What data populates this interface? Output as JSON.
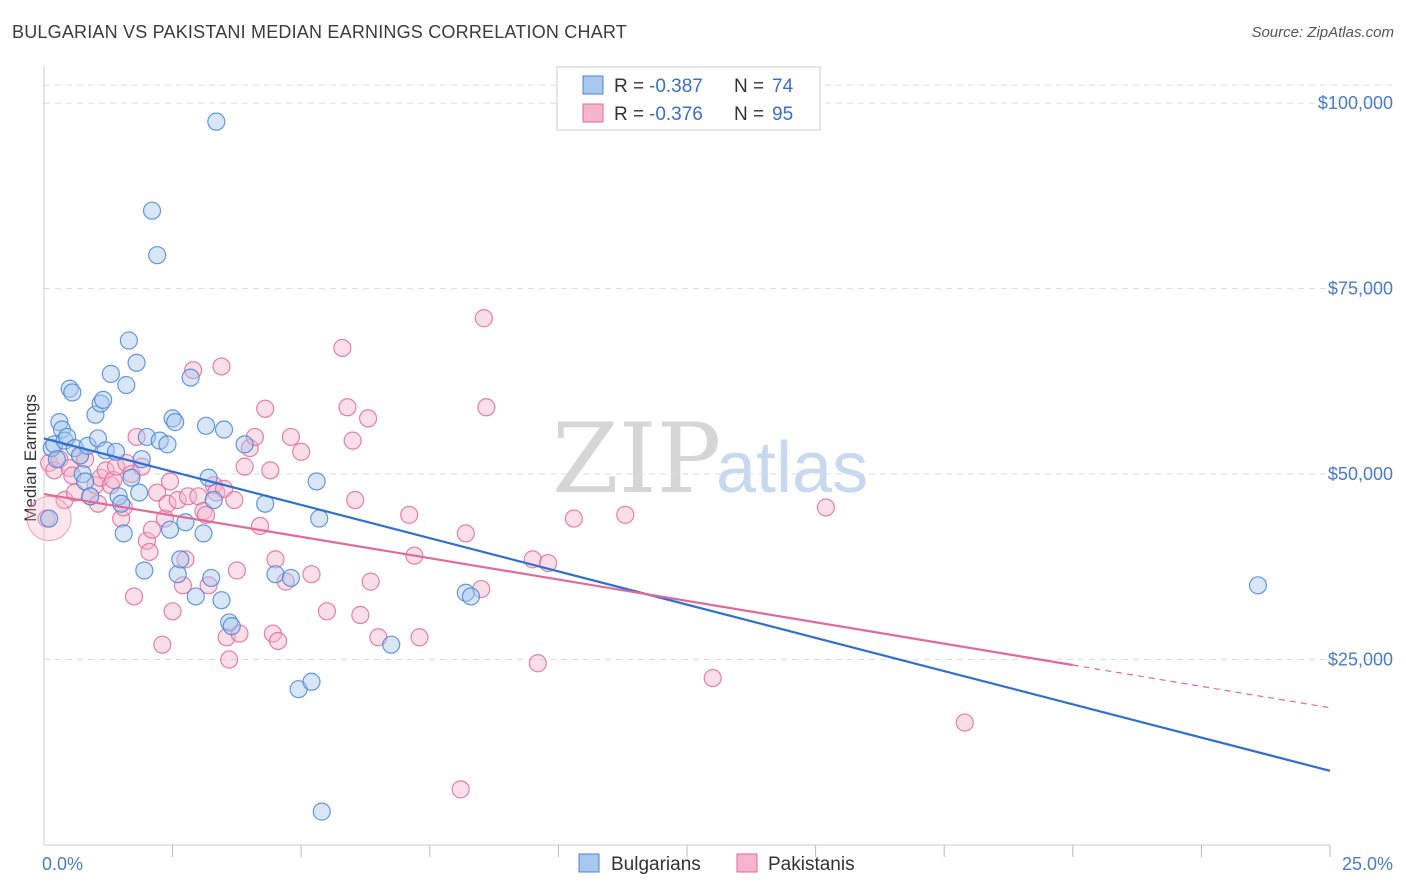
{
  "title": "BULGARIAN VS PAKISTANI MEDIAN EARNINGS CORRELATION CHART",
  "source": "Source: ZipAtlas.com",
  "watermark": {
    "zip": "ZIP",
    "atlas": "atlas"
  },
  "colors": {
    "bulgarians": "#4a86d8",
    "bulgarians_fill": "#a9c8f0",
    "pakistanis": "#e26b9a",
    "pakistanis_fill": "#f5b6cc",
    "axis_text": "#4a7cc4",
    "grid": "#dddddd"
  },
  "legend": {
    "rows": [
      {
        "r_label": "R =",
        "r_value": "-0.387",
        "n_label": "N =",
        "n_value": "74",
        "series": "bulgarians"
      },
      {
        "r_label": "R =",
        "r_value": "-0.376",
        "n_label": "N =",
        "n_value": "95",
        "series": "pakistanis"
      }
    ]
  },
  "bottom_legend": [
    "Bulgarians",
    "Pakistanis"
  ],
  "chart_data": {
    "type": "scatter",
    "title": "BULGARIAN VS PAKISTANI MEDIAN EARNINGS CORRELATION CHART",
    "xlabel": "",
    "ylabel": "Median Earnings",
    "xlim": [
      0,
      25
    ],
    "ylim": [
      0,
      105000
    ],
    "x_tick_labels": [
      "0.0%",
      "25.0%"
    ],
    "y_ticks": [
      25000,
      50000,
      75000,
      100000
    ],
    "y_tick_labels": [
      "$25,000",
      "$50,000",
      "$75,000",
      "$100,000"
    ],
    "grid": true,
    "series": [
      {
        "name": "Bulgarians",
        "r": -0.387,
        "n": 74,
        "trend": {
          "x0": 0,
          "y0": 54800,
          "x1": 25,
          "y1": 10000,
          "dashed_from": null
        },
        "points": [
          [
            0.1,
            44000
          ],
          [
            0.15,
            53500
          ],
          [
            0.2,
            54000
          ],
          [
            0.25,
            52000
          ],
          [
            0.3,
            57000
          ],
          [
            0.35,
            56000
          ],
          [
            0.4,
            54500
          ],
          [
            0.45,
            55000
          ],
          [
            0.5,
            61500
          ],
          [
            0.55,
            61000
          ],
          [
            0.6,
            53500
          ],
          [
            0.7,
            52500
          ],
          [
            0.75,
            50000
          ],
          [
            0.8,
            49000
          ],
          [
            0.85,
            53800
          ],
          [
            0.9,
            47000
          ],
          [
            1.0,
            58000
          ],
          [
            1.05,
            54800
          ],
          [
            1.1,
            59500
          ],
          [
            1.15,
            60000
          ],
          [
            1.2,
            53200
          ],
          [
            1.3,
            63500
          ],
          [
            1.4,
            53000
          ],
          [
            1.45,
            47000
          ],
          [
            1.5,
            46000
          ],
          [
            1.55,
            42000
          ],
          [
            1.6,
            62000
          ],
          [
            1.65,
            68000
          ],
          [
            1.7,
            49500
          ],
          [
            1.8,
            65000
          ],
          [
            1.85,
            47500
          ],
          [
            1.9,
            52000
          ],
          [
            1.95,
            37000
          ],
          [
            2.0,
            55000
          ],
          [
            2.1,
            85500
          ],
          [
            2.2,
            79500
          ],
          [
            2.25,
            54500
          ],
          [
            2.4,
            54000
          ],
          [
            2.45,
            42500
          ],
          [
            2.5,
            57500
          ],
          [
            2.55,
            57000
          ],
          [
            2.6,
            36500
          ],
          [
            2.65,
            38500
          ],
          [
            2.75,
            43500
          ],
          [
            2.85,
            63000
          ],
          [
            2.95,
            33500
          ],
          [
            3.1,
            42000
          ],
          [
            3.15,
            56500
          ],
          [
            3.2,
            49500
          ],
          [
            3.25,
            36000
          ],
          [
            3.3,
            46500
          ],
          [
            3.35,
            97500
          ],
          [
            3.45,
            33000
          ],
          [
            3.5,
            56000
          ],
          [
            3.6,
            30000
          ],
          [
            3.65,
            29500
          ],
          [
            3.9,
            54000
          ],
          [
            4.3,
            46000
          ],
          [
            4.5,
            36500
          ],
          [
            4.8,
            36000
          ],
          [
            4.95,
            21000
          ],
          [
            5.2,
            22000
          ],
          [
            5.3,
            49000
          ],
          [
            5.35,
            44000
          ],
          [
            5.4,
            4500
          ],
          [
            6.75,
            27000
          ],
          [
            8.2,
            34000
          ],
          [
            8.3,
            33500
          ],
          [
            23.6,
            35000
          ]
        ]
      },
      {
        "name": "Pakistanis",
        "r": -0.376,
        "n": 95,
        "trend": {
          "x0": 0,
          "y0": 47300,
          "x1": 25,
          "y1": 18500,
          "dashed_from": 20
        },
        "points": [
          [
            0.05,
            44000
          ],
          [
            0.1,
            51500
          ],
          [
            0.2,
            50500
          ],
          [
            0.3,
            52000
          ],
          [
            0.4,
            46500
          ],
          [
            0.5,
            50800
          ],
          [
            0.55,
            49800
          ],
          [
            0.6,
            47500
          ],
          [
            0.7,
            52500
          ],
          [
            0.8,
            52000
          ],
          [
            0.9,
            47000
          ],
          [
            1.0,
            48500
          ],
          [
            1.05,
            46000
          ],
          [
            1.1,
            49500
          ],
          [
            1.2,
            50500
          ],
          [
            1.3,
            48500
          ],
          [
            1.35,
            49200
          ],
          [
            1.4,
            51000
          ],
          [
            1.5,
            44000
          ],
          [
            1.55,
            45500
          ],
          [
            1.6,
            51500
          ],
          [
            1.7,
            50000
          ],
          [
            1.75,
            33500
          ],
          [
            1.8,
            55000
          ],
          [
            1.9,
            51000
          ],
          [
            2.0,
            41000
          ],
          [
            2.05,
            39500
          ],
          [
            2.1,
            42500
          ],
          [
            2.2,
            47500
          ],
          [
            2.3,
            27000
          ],
          [
            2.35,
            44000
          ],
          [
            2.4,
            46000
          ],
          [
            2.45,
            49000
          ],
          [
            2.5,
            31500
          ],
          [
            2.6,
            46500
          ],
          [
            2.7,
            35000
          ],
          [
            2.75,
            38500
          ],
          [
            2.8,
            47000
          ],
          [
            2.9,
            64000
          ],
          [
            3.0,
            47000
          ],
          [
            3.1,
            45000
          ],
          [
            3.15,
            44500
          ],
          [
            3.2,
            35000
          ],
          [
            3.3,
            48500
          ],
          [
            3.35,
            47500
          ],
          [
            3.45,
            64500
          ],
          [
            3.5,
            48000
          ],
          [
            3.55,
            28000
          ],
          [
            3.6,
            25000
          ],
          [
            3.7,
            46500
          ],
          [
            3.75,
            37000
          ],
          [
            3.8,
            28500
          ],
          [
            3.9,
            51000
          ],
          [
            4.0,
            53500
          ],
          [
            4.1,
            55000
          ],
          [
            4.2,
            43000
          ],
          [
            4.3,
            58800
          ],
          [
            4.4,
            50500
          ],
          [
            4.45,
            28500
          ],
          [
            4.5,
            38500
          ],
          [
            4.55,
            27500
          ],
          [
            4.7,
            35500
          ],
          [
            4.8,
            55000
          ],
          [
            5.0,
            53000
          ],
          [
            5.2,
            36500
          ],
          [
            5.5,
            31500
          ],
          [
            5.8,
            67000
          ],
          [
            5.9,
            59000
          ],
          [
            6.0,
            54500
          ],
          [
            6.05,
            46500
          ],
          [
            6.15,
            31000
          ],
          [
            6.3,
            57500
          ],
          [
            6.35,
            35500
          ],
          [
            6.5,
            28000
          ],
          [
            7.1,
            44500
          ],
          [
            7.2,
            39000
          ],
          [
            7.3,
            28000
          ],
          [
            8.1,
            7500
          ],
          [
            8.2,
            42000
          ],
          [
            8.5,
            34500
          ],
          [
            8.55,
            71000
          ],
          [
            8.6,
            59000
          ],
          [
            9.5,
            38500
          ],
          [
            9.8,
            38000
          ],
          [
            10.3,
            44000
          ],
          [
            11.3,
            44500
          ],
          [
            13.0,
            22500
          ],
          [
            15.2,
            45500
          ],
          [
            17.9,
            16500
          ],
          [
            9.6,
            24500
          ]
        ]
      }
    ]
  }
}
